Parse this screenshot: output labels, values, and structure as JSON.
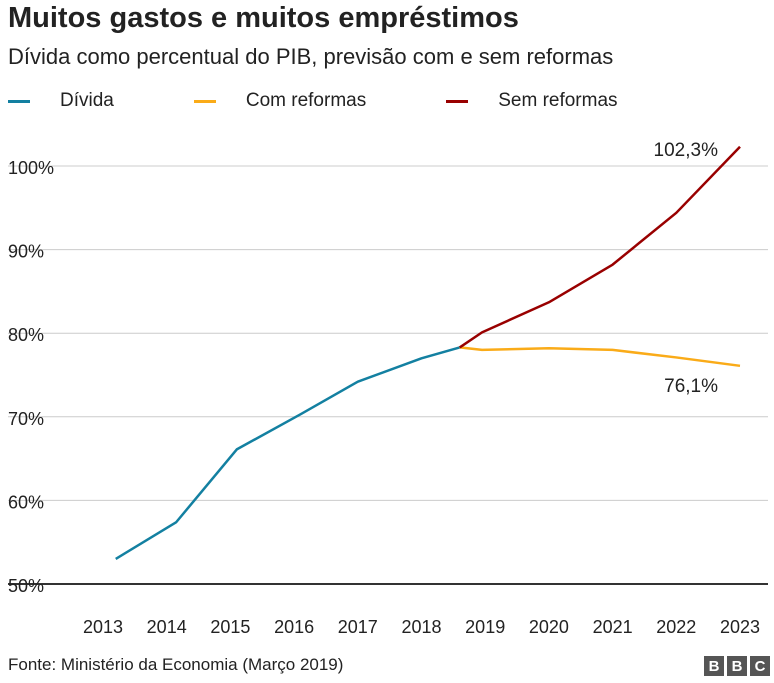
{
  "chart_data": {
    "type": "line",
    "title": "Muitos gastos e muitos empréstimos",
    "subtitle": "Dívida como percentual do PIB, previsão com e sem reformas",
    "xlabel": "",
    "ylabel": "",
    "ylim": [
      50,
      100
    ],
    "yticks": [
      50,
      60,
      70,
      80,
      90,
      100
    ],
    "ytick_labels": [
      "50%",
      "60%",
      "70%",
      "80%",
      "90%",
      "100%"
    ],
    "xticks": [
      "2013",
      "2014",
      "2015",
      "2016",
      "2017",
      "2018",
      "2019",
      "2020",
      "2021",
      "2022",
      "2023"
    ],
    "grid": true,
    "legend_position": "top-left",
    "series": [
      {
        "name": "Dívida",
        "color": "#1380A1",
        "x": [
          2013.2,
          2014.15,
          2015.1,
          2016.1,
          2017.0,
          2018.0,
          2018.6
        ],
        "y": [
          53.0,
          57.4,
          66.1,
          70.3,
          74.2,
          77.0,
          78.3
        ]
      },
      {
        "name": "Com reformas",
        "color": "#FAAB18",
        "x": [
          2018.6,
          2018.95,
          2020.0,
          2021.0,
          2022.0,
          2023.0
        ],
        "y": [
          78.3,
          78.0,
          78.2,
          78.0,
          77.1,
          76.1
        ]
      },
      {
        "name": "Sem reformas",
        "color": "#990000",
        "x": [
          2018.6,
          2018.95,
          2020.0,
          2021.0,
          2022.0,
          2023.0
        ],
        "y": [
          78.3,
          80.1,
          83.7,
          88.2,
          94.4,
          102.3
        ]
      }
    ],
    "annotations": [
      {
        "text": "102,3%",
        "series": "Sem reformas"
      },
      {
        "text": "76,1%",
        "series": "Com reformas"
      }
    ]
  },
  "footer": {
    "source": "Fonte: Ministério da Economia (Março 2019)",
    "logo": [
      "B",
      "B",
      "C"
    ]
  }
}
